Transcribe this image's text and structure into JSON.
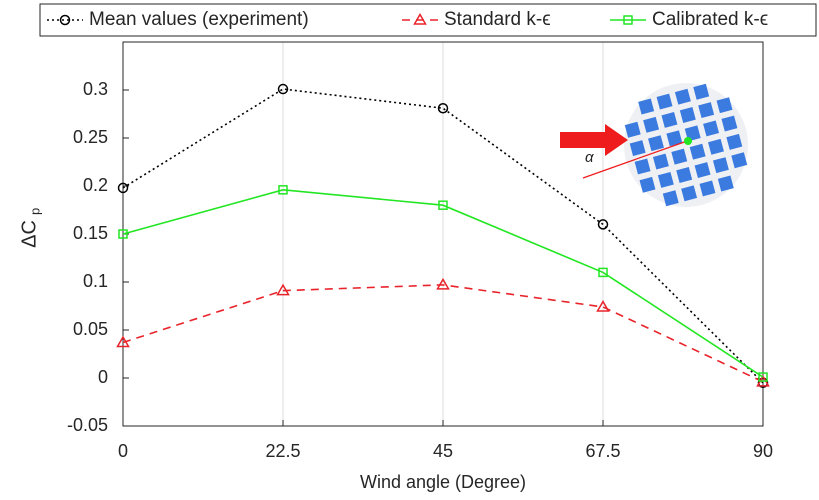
{
  "chart_data": {
    "type": "line",
    "xlabel": "Wind angle (Degree)",
    "ylabel": "ΔC",
    "ylabel_sub": "p",
    "inset_label": "α",
    "x": [
      0,
      22.5,
      45,
      67.5,
      90
    ],
    "xlim": [
      0,
      90
    ],
    "xticks": [
      0,
      22.5,
      45,
      67.5,
      90
    ],
    "ylim": [
      -0.05,
      0.35
    ],
    "yticks": [
      -0.05,
      0,
      0.05,
      0.1,
      0.15,
      0.2,
      0.25,
      0.3
    ],
    "grid": "x",
    "legend": "top",
    "series": [
      {
        "name": "Mean values (experiment)",
        "color": "#000000",
        "style": "dotted",
        "marker": "circle",
        "values": [
          0.198,
          0.301,
          0.281,
          0.16,
          -0.005
        ]
      },
      {
        "name": "Standard k-ϵ",
        "color": "#e8232a",
        "style": "dashed",
        "marker": "triangle",
        "values": [
          0.037,
          0.091,
          0.097,
          0.074,
          -0.004
        ]
      },
      {
        "name": "Calibrated k-ϵ",
        "color": "#22e622",
        "style": "solid",
        "marker": "square",
        "values": [
          0.15,
          0.196,
          0.18,
          0.11,
          0.001
        ]
      }
    ]
  }
}
